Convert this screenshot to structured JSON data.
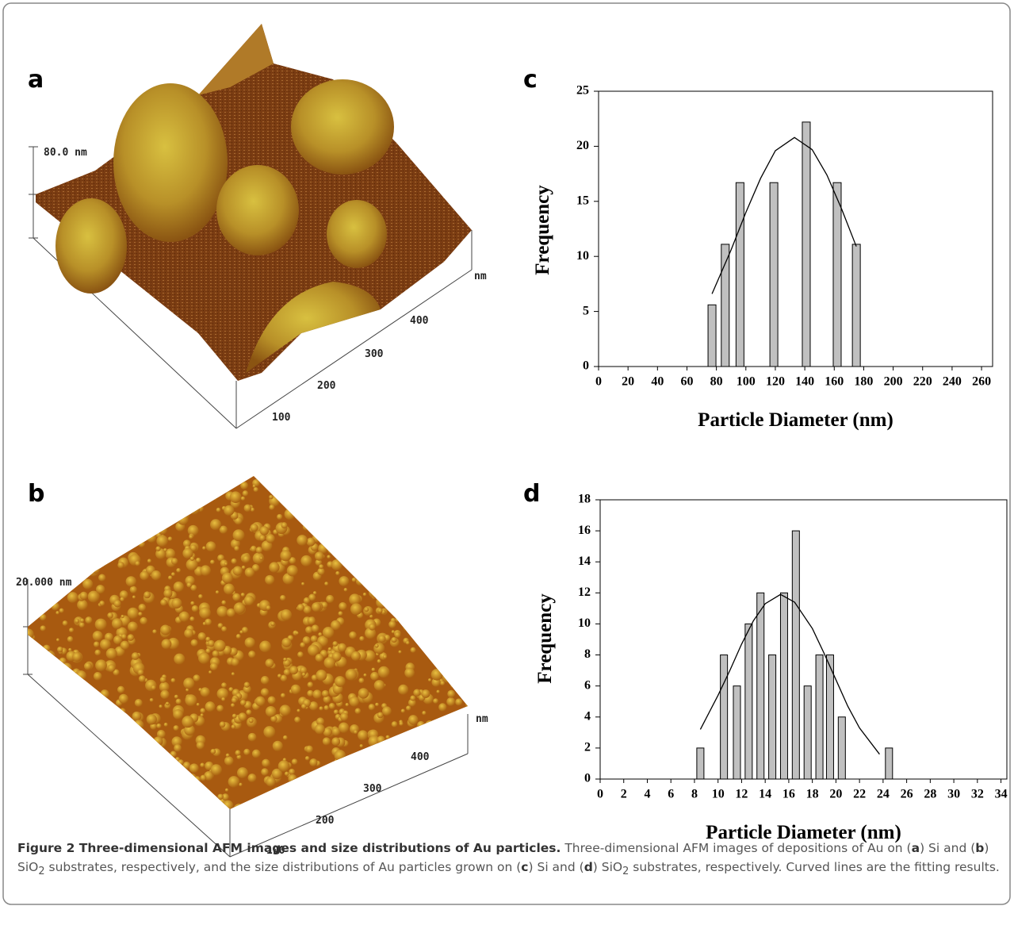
{
  "panel_labels": [
    "a",
    "b",
    "c",
    "d"
  ],
  "afm": [
    {
      "z_scale": "80.0 nm",
      "unit": "nm",
      "ticks": [
        100,
        200,
        300,
        400
      ]
    },
    {
      "z_scale": "20.000 nm",
      "unit": "nm",
      "ticks": [
        100,
        200,
        300,
        400
      ]
    }
  ],
  "chart_data": [
    {
      "type": "bar",
      "x_label": "Particle Diameter (nm)",
      "y_label": "Frequency",
      "x": [
        77,
        86,
        96,
        119,
        141,
        162,
        175
      ],
      "values": [
        5.6,
        11.1,
        16.7,
        16.7,
        22.2,
        16.7,
        11.1
      ],
      "color": "#c0c0c0",
      "xlim": [
        0,
        267.5
      ],
      "ylim": [
        0,
        25
      ],
      "xticks": [
        0,
        20,
        40,
        60,
        80,
        100,
        120,
        140,
        160,
        180,
        200,
        220,
        240,
        260
      ],
      "yticks": [
        0,
        5,
        10,
        15,
        20,
        25
      ],
      "fit": {
        "x": [
          77,
          90,
          100,
          110,
          120,
          133,
          145,
          155,
          165,
          175
        ],
        "values": [
          6.6,
          10.6,
          14.0,
          17.1,
          19.6,
          20.8,
          19.7,
          17.4,
          14.3,
          10.9
        ],
        "color": "#000000"
      }
    },
    {
      "type": "bar",
      "x_label": "Particle Diameter (nm)",
      "y_label": "Frequency",
      "x": [
        8.5,
        10.5,
        11.6,
        12.6,
        13.6,
        14.6,
        15.6,
        16.6,
        17.6,
        18.6,
        19.5,
        20.5,
        24.5
      ],
      "values": [
        2,
        8,
        6,
        10,
        12,
        8,
        12,
        16,
        6,
        8,
        8,
        4,
        2
      ],
      "color": "#c0c0c0",
      "xlim": [
        0,
        34.5
      ],
      "ylim": [
        0,
        18
      ],
      "xticks": [
        0,
        2,
        4,
        6,
        8,
        10,
        12,
        14,
        16,
        18,
        20,
        22,
        24,
        26,
        28,
        30,
        32,
        34
      ],
      "yticks": [
        0,
        2,
        4,
        6,
        8,
        10,
        12,
        14,
        16,
        18
      ],
      "fit": {
        "x": [
          8.5,
          10,
          11,
          12,
          13,
          14,
          15.3,
          16.5,
          18,
          19,
          20,
          21,
          22,
          23.7
        ],
        "values": [
          3.2,
          5.4,
          7.0,
          8.7,
          10.2,
          11.3,
          11.9,
          11.4,
          9.7,
          8.1,
          6.4,
          4.7,
          3.3,
          1.6
        ],
        "color": "#000000"
      }
    }
  ],
  "caption": {
    "title": "Figure 2 Three-dimensional AFM images and size distributions of Au particles.",
    "parts": [
      "Three-dimensional AFM images of depositions of Au on (",
      "a",
      ") Si and (",
      "b",
      ") SiO",
      "2",
      " substrates, respectively, and the size distributions of Au particles grown on (",
      "c",
      ") Si and (",
      "d",
      ") SiO",
      "2",
      " substrates, respectively. Curved lines are the fitting results."
    ]
  }
}
